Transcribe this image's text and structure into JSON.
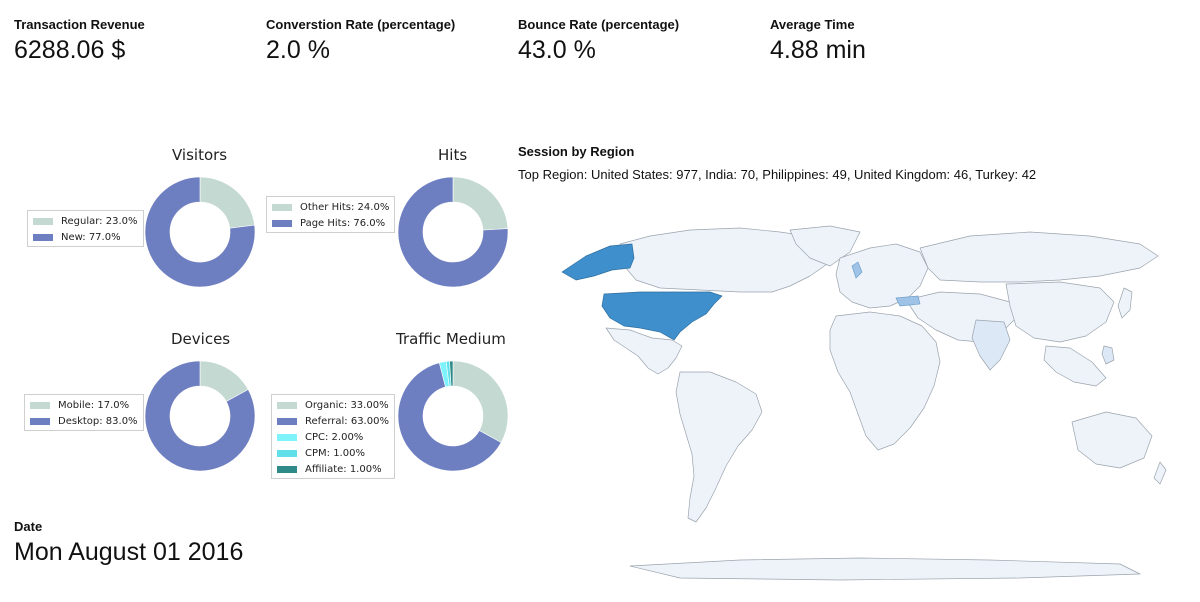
{
  "kpis": [
    {
      "label": "Transaction Revenue",
      "value": "6288.06 $"
    },
    {
      "label": "Converstion Rate (percentage)",
      "value": "2.0 %"
    },
    {
      "label": "Bounce Rate (percentage)",
      "value": "43.0 %"
    },
    {
      "label": "Average Time",
      "value": "4.88 min"
    }
  ],
  "date": {
    "label": "Date",
    "value": "Mon August 01 2016"
  },
  "region": {
    "title": "Session by Region",
    "subtitle": "Top Region: United States: 977, India: 70, Philippines: 49, United Kingdom: 46, Turkey: 42"
  },
  "colors": {
    "sage": "#c3d9d1",
    "blue": "#6e7fc1",
    "cyan": "#7ef3fb",
    "cyan2": "#62e0ea",
    "teal": "#2f8a8a",
    "map_highlight": "#3f8fcd",
    "map_land": "#eef3fa"
  },
  "chart_data": [
    {
      "type": "pie",
      "title": "Visitors",
      "labels": [
        "Regular",
        "New"
      ],
      "legend": [
        "Regular: 23.0%",
        "New: 77.0%"
      ],
      "values": [
        23.0,
        77.0
      ]
    },
    {
      "type": "pie",
      "title": "Hits",
      "labels": [
        "Other Hits",
        "Page Hits"
      ],
      "legend": [
        "Other Hits: 24.0%",
        "Page Hits: 76.0%"
      ],
      "values": [
        24.0,
        76.0
      ]
    },
    {
      "type": "pie",
      "title": "Devices",
      "labels": [
        "Mobile",
        "Desktop"
      ],
      "legend": [
        "Mobile: 17.0%",
        "Desktop: 83.0%"
      ],
      "values": [
        17.0,
        83.0
      ]
    },
    {
      "type": "pie",
      "title": "Traffic Medium",
      "labels": [
        "Organic",
        "Referral",
        "CPC",
        "CPM",
        "Affiliate"
      ],
      "legend": [
        "Organic: 33.00%",
        "Referral: 63.00%",
        "CPC: 2.00%",
        "CPM: 1.00%",
        "Affiliate: 1.00%"
      ],
      "values": [
        33.0,
        63.0,
        2.0,
        1.0,
        1.0
      ]
    }
  ]
}
